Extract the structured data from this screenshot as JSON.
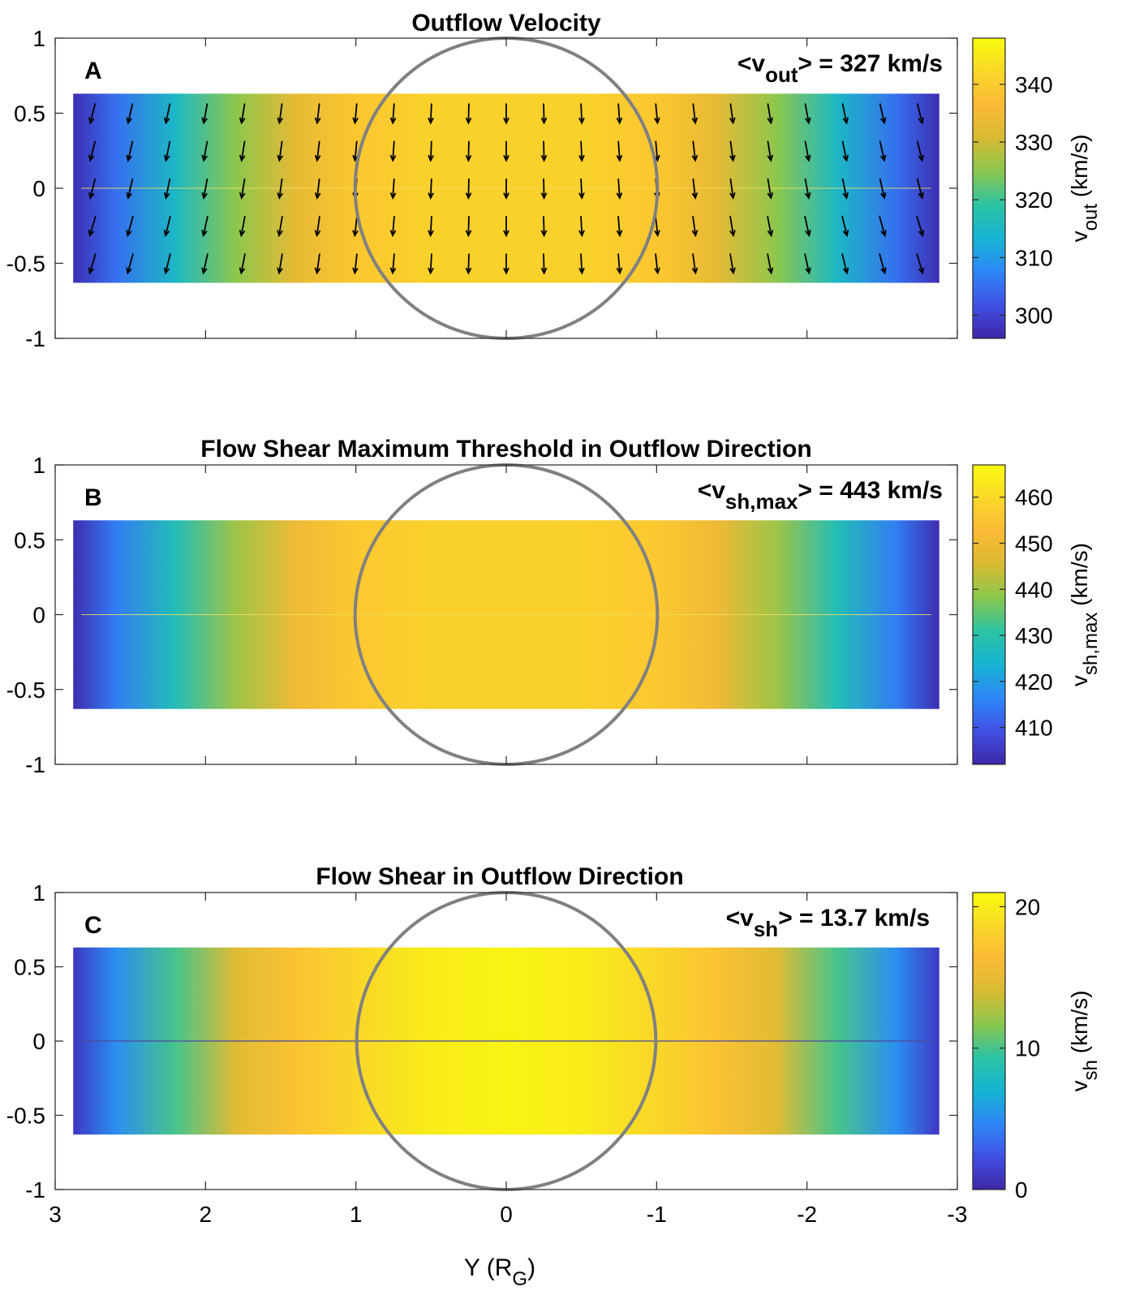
{
  "colors": {
    "circle": "#808080",
    "arrow": "#000000",
    "frame": "#262626",
    "colormap": [
      "#3e26a8",
      "#4050e4",
      "#2e87f7",
      "#16b4d2",
      "#2cc3a4",
      "#8ac74e",
      "#d8bb33",
      "#fcb937",
      "#f9d828",
      "#f9fb0e"
    ]
  },
  "xaxis": {
    "label": "Y (R",
    "label_sub": "G",
    "label_close": ")",
    "range": [
      3,
      -3
    ],
    "ticks": [
      3,
      2,
      1,
      0,
      -1,
      -2,
      -3
    ],
    "tick_labels": [
      "3",
      "2",
      "1",
      "0",
      "-1",
      "-2",
      "-3"
    ]
  },
  "chart_data": [
    {
      "type": "heatmap",
      "panel": "A",
      "title": "Outflow Velocity",
      "mean_text": {
        "pre": "<v",
        "sub": "out",
        "post": "> = 327 km/s"
      },
      "xlim": [
        3,
        -3
      ],
      "ylim": [
        -1,
        1
      ],
      "yticks": [
        1,
        0.5,
        0,
        -0.5,
        -1
      ],
      "ytick_labels": [
        "1",
        "0.5",
        "0",
        "-0.5",
        "-1"
      ],
      "band_y": [
        -0.63,
        0.63
      ],
      "band_x": [
        2.88,
        -2.88
      ],
      "circle": {
        "cx": 0,
        "cy": 0,
        "r": 1
      },
      "profile": {
        "y": [
          2.88,
          2.6,
          2.2,
          1.8,
          1.4,
          1.0,
          0.5,
          0,
          -0.5,
          -1.0,
          -1.4,
          -1.8,
          -2.2,
          -2.6,
          -2.88
        ],
        "value": [
          297,
          305,
          315,
          325,
          333,
          339,
          341,
          341,
          341,
          339,
          333,
          325,
          315,
          305,
          297
        ]
      },
      "colorbar": {
        "min": 296,
        "max": 348,
        "ticks": [
          340,
          330,
          320,
          310,
          300
        ],
        "tick_labels": [
          "340",
          "330",
          "320",
          "310",
          "300"
        ],
        "label": {
          "pre": "v",
          "sub": "out",
          "post": " (km/s)"
        }
      },
      "arrows": {
        "columns": [
          2.75,
          2.5,
          2.25,
          2.0,
          1.75,
          1.5,
          1.25,
          1.0,
          0.75,
          0.5,
          0.25,
          0,
          -0.25,
          -0.5,
          -0.75,
          -1.0,
          -1.25,
          -1.5,
          -1.75,
          -2.0,
          -2.25,
          -2.5,
          -2.75
        ],
        "rows": [
          0.5,
          0.25,
          0,
          -0.25,
          -0.5
        ]
      }
    },
    {
      "type": "heatmap",
      "panel": "B",
      "title": "Flow Shear Maximum Threshold in Outflow Direction",
      "mean_text": {
        "pre": "<v",
        "sub": "sh,max",
        "post": "> = 443 km/s"
      },
      "xlim": [
        3,
        -3
      ],
      "ylim": [
        -1,
        1
      ],
      "yticks": [
        1,
        0.5,
        0,
        -0.5,
        -1
      ],
      "ytick_labels": [
        "1",
        "0.5",
        "0",
        "-0.5",
        "-1"
      ],
      "band_y": [
        -0.63,
        0.63
      ],
      "band_x": [
        2.88,
        -2.88
      ],
      "circle": {
        "cx": 0,
        "cy": 0,
        "r": 1
      },
      "profile": {
        "y": [
          2.88,
          2.6,
          2.2,
          1.8,
          1.4,
          1.0,
          0.5,
          0,
          -0.5,
          -1.0,
          -1.4,
          -1.8,
          -2.2,
          -2.6,
          -2.88
        ],
        "value": [
          403,
          415,
          428,
          440,
          450,
          456,
          458,
          458,
          458,
          456,
          450,
          440,
          428,
          415,
          403
        ]
      },
      "colorbar": {
        "min": 402,
        "max": 467,
        "ticks": [
          460,
          450,
          440,
          430,
          420,
          410
        ],
        "tick_labels": [
          "460",
          "450",
          "440",
          "430",
          "420",
          "410"
        ],
        "label": {
          "pre": "v",
          "sub": "sh,max",
          "post": " (km/s)"
        }
      }
    },
    {
      "type": "heatmap",
      "panel": "C",
      "title": "Flow Shear in Outflow Direction",
      "mean_text": {
        "pre": "<v",
        "sub": "sh",
        "post": "> = 13.7 km/s"
      },
      "xlim": [
        3,
        -3
      ],
      "ylim": [
        -1,
        1
      ],
      "yticks": [
        1,
        0.5,
        0,
        -0.5,
        -1
      ],
      "ytick_labels": [
        "1",
        "0.5",
        "0",
        "-0.5",
        "-1"
      ],
      "band_y": [
        -0.63,
        0.63
      ],
      "band_x": [
        2.88,
        -2.88
      ],
      "circle": {
        "cx": 0,
        "cy": 0,
        "r": 1
      },
      "profile": {
        "y": [
          2.88,
          2.6,
          2.2,
          1.8,
          1.4,
          1.0,
          0.5,
          0,
          -0.5,
          -1.0,
          -1.4,
          -1.8,
          -2.2,
          -2.6,
          -2.88
        ],
        "value": [
          1,
          5,
          10,
          14.5,
          17,
          18.5,
          20,
          20.5,
          20,
          18.5,
          17,
          14.5,
          10,
          5,
          1
        ]
      },
      "colorbar": {
        "min": 0,
        "max": 21,
        "ticks": [
          20,
          10,
          0
        ],
        "tick_labels": [
          "20",
          "10",
          "0"
        ],
        "label": {
          "pre": "v",
          "sub": "sh",
          "post": " (km/s)"
        }
      }
    }
  ]
}
